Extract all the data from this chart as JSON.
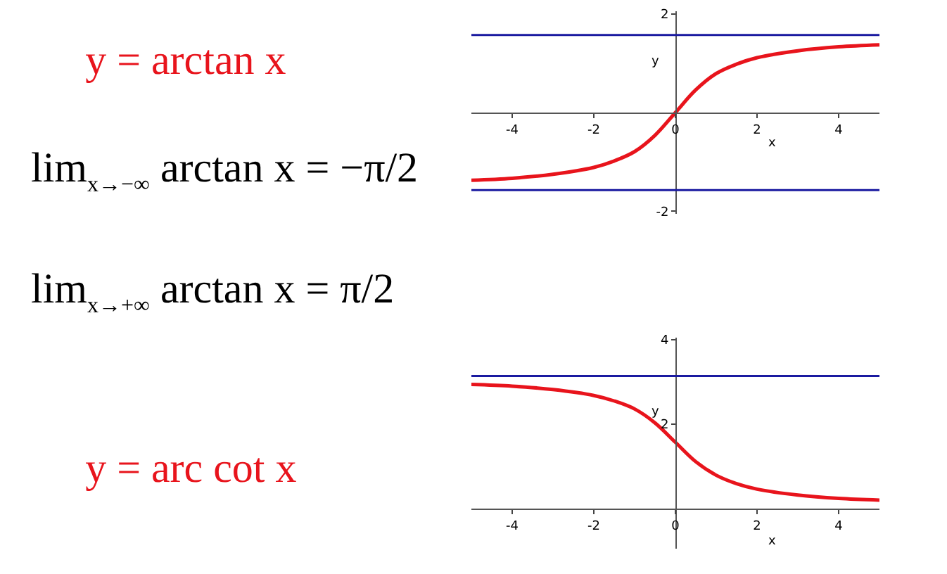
{
  "chart_data": [
    {
      "type": "other",
      "annotations": [
        "lim$_{x→−∞}$ arctan x = −π/2",
        "lim$_{x→+∞}$ arctan x = π/2"
      ]
    },
    {
      "type": "line",
      "title": "y = arctan x",
      "xlabel": "x",
      "ylabel": "y",
      "x": [
        -5,
        -4,
        -3,
        -2,
        -1.5,
        -1,
        -0.5,
        0,
        0.5,
        1,
        1.5,
        2,
        3,
        4,
        5
      ],
      "series": [
        {
          "color": "#e8141c",
          "values": [
            -1.37,
            -1.33,
            -1.25,
            -1.11,
            -0.98,
            -0.79,
            -0.46,
            0,
            0.46,
            0.79,
            0.98,
            1.11,
            1.25,
            1.33,
            1.37
          ]
        }
      ],
      "xlim": [
        -5,
        5
      ],
      "ylim": [
        -2.05,
        2.05
      ],
      "xticks": [
        -4,
        -2,
        0,
        2,
        4
      ],
      "yticks": [
        -2,
        2
      ],
      "grid": false,
      "marker": "none",
      "line_style": "solid",
      "ref_lines": [
        {
          "axis": "y",
          "value": 1.57,
          "color": "#1a1aa0"
        },
        {
          "axis": "y",
          "value": -1.57,
          "color": "#1a1aa0"
        }
      ]
    },
    {
      "type": "line",
      "title": "y = arc cot x",
      "xlabel": "x",
      "ylabel": "y",
      "x": [
        -5,
        -4,
        -3,
        -2,
        -1.5,
        -1,
        -0.5,
        0,
        0.5,
        1,
        1.5,
        2,
        3,
        4,
        5
      ],
      "series": [
        {
          "color": "#e8141c",
          "values": [
            2.94,
            2.9,
            2.82,
            2.68,
            2.55,
            2.36,
            2.03,
            1.57,
            1.11,
            0.79,
            0.59,
            0.46,
            0.32,
            0.24,
            0.2
          ]
        }
      ],
      "xlim": [
        -5,
        5
      ],
      "ylim": [
        -0.95,
        4.05
      ],
      "xticks": [
        -4,
        -2,
        0,
        2,
        4
      ],
      "yticks": [
        2,
        4
      ],
      "grid": false,
      "marker": "none",
      "line_style": "solid",
      "ref_lines": [
        {
          "axis": "y",
          "value": 3.14,
          "color": "#1a1aa0"
        }
      ]
    }
  ]
}
